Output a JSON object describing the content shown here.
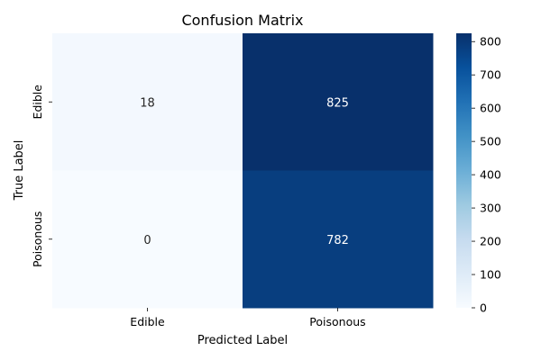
{
  "chart_data": {
    "type": "heatmap",
    "title": "Confusion Matrix",
    "xlabel": "Predicted Label",
    "ylabel": "True Label",
    "x_categories": [
      "Edible",
      "Poisonous"
    ],
    "y_categories": [
      "Edible",
      "Poisonous"
    ],
    "values": [
      [
        18,
        825
      ],
      [
        0,
        782
      ]
    ],
    "colormap": "Blues",
    "colorbar": {
      "min": 0,
      "max": 825,
      "ticks": [
        0,
        100,
        200,
        300,
        400,
        500,
        600,
        700,
        800
      ]
    }
  }
}
